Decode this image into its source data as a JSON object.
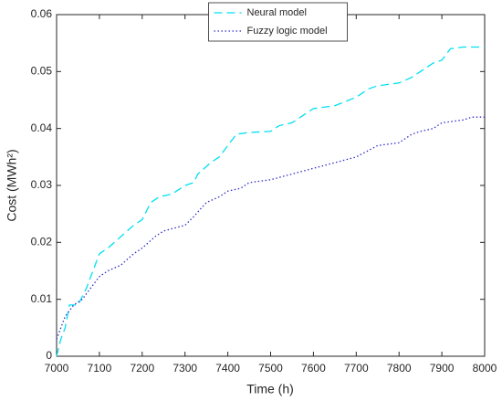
{
  "chart_data": {
    "type": "line",
    "xlabel": "Time (h)",
    "ylabel": "Cost (MWh²)",
    "xlim": [
      7000,
      8000
    ],
    "xticks": [
      7000,
      7100,
      7200,
      7300,
      7400,
      7500,
      7600,
      7700,
      7800,
      7900,
      8000
    ],
    "ylim": [
      0,
      0.06
    ],
    "yticks": [
      0,
      0.01,
      0.02,
      0.03,
      0.04,
      0.05,
      0.06
    ],
    "legend": "upper center",
    "series": [
      {
        "name": "Neural model",
        "color": "#00e0f0",
        "dash": "dashed",
        "x": [
          7000,
          7010,
          7020,
          7030,
          7050,
          7070,
          7090,
          7100,
          7120,
          7150,
          7180,
          7200,
          7220,
          7240,
          7270,
          7300,
          7320,
          7330,
          7360,
          7380,
          7400,
          7420,
          7450,
          7500,
          7520,
          7550,
          7580,
          7600,
          7650,
          7700,
          7730,
          7750,
          7800,
          7830,
          7850,
          7880,
          7900,
          7920,
          7950,
          8000
        ],
        "values": [
          0,
          0.003,
          0.005,
          0.009,
          0.009,
          0.012,
          0.016,
          0.018,
          0.019,
          0.021,
          0.023,
          0.024,
          0.027,
          0.028,
          0.0285,
          0.03,
          0.0305,
          0.032,
          0.034,
          0.035,
          0.037,
          0.039,
          0.0393,
          0.0395,
          0.0405,
          0.041,
          0.0425,
          0.0435,
          0.044,
          0.0455,
          0.047,
          0.0475,
          0.048,
          0.049,
          0.05,
          0.0515,
          0.052,
          0.054,
          0.0543,
          0.0543
        ]
      },
      {
        "name": "Fuzzy logic model",
        "color": "#3030c8",
        "dash": "dotted",
        "x": [
          7000,
          7010,
          7020,
          7040,
          7060,
          7080,
          7100,
          7120,
          7150,
          7180,
          7200,
          7230,
          7250,
          7300,
          7320,
          7350,
          7380,
          7400,
          7430,
          7450,
          7500,
          7550,
          7600,
          7650,
          7700,
          7750,
          7800,
          7830,
          7850,
          7880,
          7900,
          7950,
          7970,
          8000
        ],
        "values": [
          0.003,
          0.005,
          0.007,
          0.009,
          0.01,
          0.012,
          0.014,
          0.015,
          0.016,
          0.018,
          0.019,
          0.021,
          0.022,
          0.023,
          0.0245,
          0.027,
          0.028,
          0.029,
          0.0295,
          0.0305,
          0.031,
          0.032,
          0.033,
          0.034,
          0.035,
          0.037,
          0.0375,
          0.039,
          0.0395,
          0.04,
          0.041,
          0.0415,
          0.042,
          0.042
        ]
      }
    ]
  }
}
